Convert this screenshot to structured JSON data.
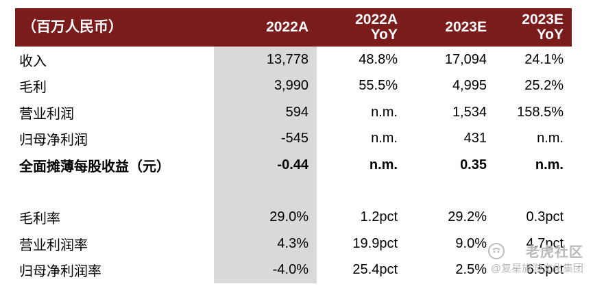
{
  "table": {
    "header": {
      "label": "（百万人民币）",
      "col1": "2022A",
      "col2_line1": "2022A",
      "col2_line2": "YoY",
      "col3": "2023E",
      "col4_line1": "2023E",
      "col4_line2": "YoY"
    },
    "rows": [
      {
        "label": "收入",
        "a2022": "13,778",
        "yoy2022": "48.8%",
        "e2023": "17,094",
        "yoy2023": "24.1%"
      },
      {
        "label": "毛利",
        "a2022": "3,990",
        "yoy2022": "55.5%",
        "e2023": "4,995",
        "yoy2023": "25.2%"
      },
      {
        "label": "营业利润",
        "a2022": "594",
        "yoy2022": "n.m.",
        "e2023": "1,534",
        "yoy2023": "158.5%"
      },
      {
        "label": "归母净利润",
        "a2022": "-545",
        "yoy2022": "n.m.",
        "e2023": "431",
        "yoy2023": "n.m."
      },
      {
        "label": "全面摊薄每股收益（元）",
        "a2022": "-0.44",
        "yoy2022": "n.m.",
        "e2023": "0.35",
        "yoy2023": "n.m."
      },
      {
        "label": "毛利率",
        "a2022": "29.0%",
        "yoy2022": "1.2pct",
        "e2023": "29.2%",
        "yoy2023": "0.3pct"
      },
      {
        "label": "营业利润率",
        "a2022": "4.3%",
        "yoy2022": "19.9pct",
        "e2023": "9.0%",
        "yoy2023": "4.7pct"
      },
      {
        "label": "归母净利润率",
        "a2022": "-4.0%",
        "yoy2022": "25.4pct",
        "e2023": "2.5%",
        "yoy2023": "6.5pct"
      }
    ]
  },
  "watermark": {
    "line1": "老虎社区",
    "line2": "@复星旅游文化集团"
  },
  "colors": {
    "header_bg": "#7a1c1c",
    "shade": "#d9d9d9"
  }
}
